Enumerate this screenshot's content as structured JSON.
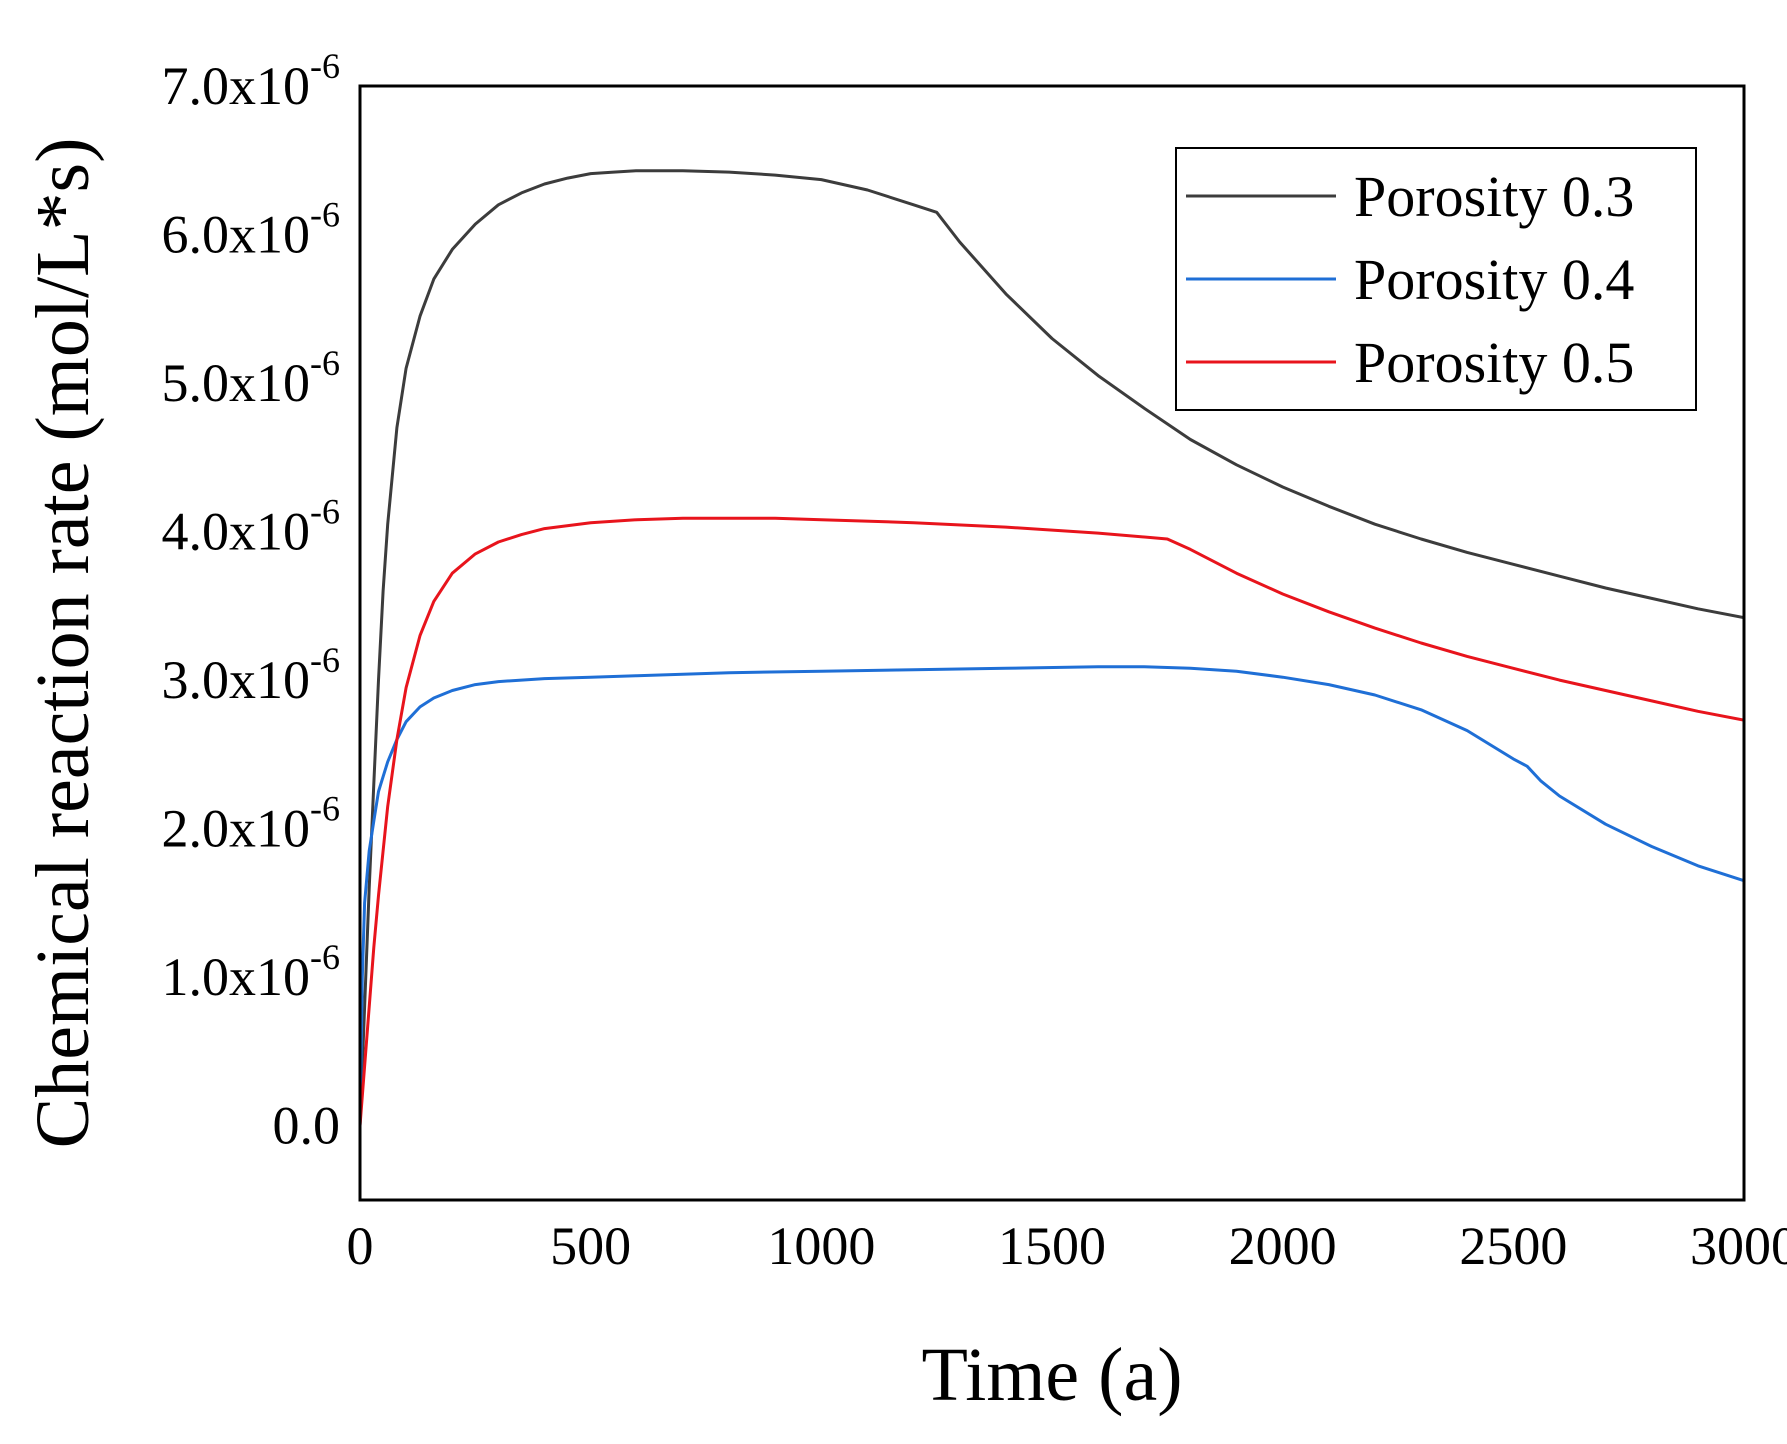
{
  "chart_data": {
    "type": "line",
    "title": "",
    "xlabel": "Time (a)",
    "ylabel": "Chemical reaction rate (mol/L*s)",
    "xlim": [
      0,
      3000
    ],
    "ylim": [
      -0.5,
      7.0
    ],
    "y_scale_exponent": "-6",
    "xticks": [
      {
        "value": 0,
        "label": "0"
      },
      {
        "value": 500,
        "label": "500"
      },
      {
        "value": 1000,
        "label": "1000"
      },
      {
        "value": 1500,
        "label": "1500"
      },
      {
        "value": 2000,
        "label": "2000"
      },
      {
        "value": 2500,
        "label": "2500"
      },
      {
        "value": 3000,
        "label": "3000"
      }
    ],
    "yticks": [
      {
        "value": 0,
        "label": "0.0"
      },
      {
        "value": 1,
        "mantissa": "1.0x10",
        "exp": "-6"
      },
      {
        "value": 2,
        "mantissa": "2.0x10",
        "exp": "-6"
      },
      {
        "value": 3,
        "mantissa": "3.0x10",
        "exp": "-6"
      },
      {
        "value": 4,
        "mantissa": "4.0x10",
        "exp": "-6"
      },
      {
        "value": 5,
        "mantissa": "5.0x10",
        "exp": "-6"
      },
      {
        "value": 6,
        "mantissa": "6.0x10",
        "exp": "-6"
      },
      {
        "value": 7,
        "mantissa": "7.0x10",
        "exp": "-6"
      }
    ],
    "legend_position": "top-right",
    "series": [
      {
        "name": "Porosity 0.3",
        "color": "#3c3c3c",
        "x": [
          0,
          10,
          20,
          30,
          40,
          50,
          60,
          80,
          100,
          130,
          160,
          200,
          250,
          300,
          350,
          400,
          450,
          500,
          550,
          600,
          650,
          700,
          800,
          900,
          1000,
          1100,
          1200,
          1250,
          1300,
          1400,
          1500,
          1600,
          1700,
          1800,
          1900,
          2000,
          2100,
          2200,
          2300,
          2400,
          2500,
          2600,
          2700,
          2800,
          2900,
          3000
        ],
        "y": [
          0.0,
          0.8,
          1.6,
          2.3,
          3.0,
          3.6,
          4.05,
          4.7,
          5.1,
          5.45,
          5.7,
          5.9,
          6.07,
          6.2,
          6.28,
          6.34,
          6.38,
          6.41,
          6.42,
          6.43,
          6.43,
          6.43,
          6.42,
          6.4,
          6.37,
          6.3,
          6.2,
          6.15,
          5.95,
          5.6,
          5.3,
          5.05,
          4.83,
          4.62,
          4.45,
          4.3,
          4.17,
          4.05,
          3.95,
          3.86,
          3.78,
          3.7,
          3.62,
          3.55,
          3.48,
          3.42
        ]
      },
      {
        "name": "Porosity 0.4",
        "color": "#1f6fd6",
        "x": [
          0,
          5,
          10,
          20,
          30,
          40,
          60,
          80,
          100,
          130,
          160,
          200,
          250,
          300,
          350,
          400,
          500,
          600,
          800,
          1000,
          1200,
          1400,
          1600,
          1700,
          1800,
          1900,
          2000,
          2100,
          2200,
          2300,
          2400,
          2500,
          2530,
          2560,
          2600,
          2700,
          2800,
          2900,
          3000
        ],
        "y": [
          0.0,
          1.0,
          1.5,
          1.85,
          2.05,
          2.25,
          2.45,
          2.6,
          2.72,
          2.82,
          2.88,
          2.93,
          2.97,
          2.99,
          3.0,
          3.01,
          3.02,
          3.03,
          3.05,
          3.06,
          3.07,
          3.08,
          3.09,
          3.09,
          3.08,
          3.06,
          3.02,
          2.97,
          2.9,
          2.8,
          2.66,
          2.47,
          2.42,
          2.32,
          2.22,
          2.03,
          1.88,
          1.75,
          1.65
        ]
      },
      {
        "name": "Porosity 0.5",
        "color": "#e8141c",
        "x": [
          0,
          10,
          20,
          30,
          40,
          50,
          60,
          80,
          100,
          130,
          160,
          200,
          250,
          300,
          350,
          400,
          500,
          600,
          700,
          800,
          900,
          1000,
          1200,
          1400,
          1600,
          1750,
          1800,
          1900,
          2000,
          2100,
          2200,
          2300,
          2400,
          2500,
          2600,
          2700,
          2800,
          2900,
          3000
        ],
        "y": [
          0.0,
          0.4,
          0.8,
          1.2,
          1.55,
          1.85,
          2.15,
          2.6,
          2.95,
          3.3,
          3.53,
          3.72,
          3.85,
          3.93,
          3.98,
          4.02,
          4.06,
          4.08,
          4.09,
          4.09,
          4.09,
          4.08,
          4.06,
          4.03,
          3.99,
          3.95,
          3.88,
          3.72,
          3.58,
          3.46,
          3.35,
          3.25,
          3.16,
          3.08,
          3.0,
          2.93,
          2.86,
          2.79,
          2.73
        ]
      }
    ]
  }
}
